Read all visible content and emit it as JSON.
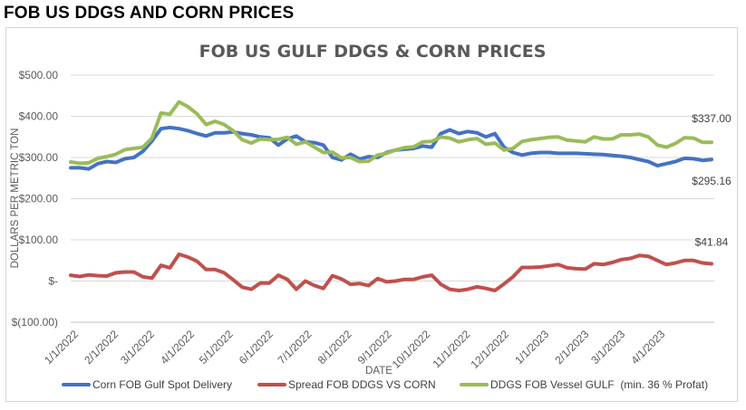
{
  "heading": "FOB US DDGS AND CORN PRICES",
  "chart_data": {
    "type": "line",
    "title": "FOB US GULF DDGS & CORN PRICES",
    "xlabel": "DATE",
    "ylabel": "DOLLARS PER METRIC TON",
    "ylim": [
      -100,
      500
    ],
    "y_ticks": [
      {
        "value": 500,
        "label": "$500.00"
      },
      {
        "value": 400,
        "label": "$400.00"
      },
      {
        "value": 300,
        "label": "$300.00"
      },
      {
        "value": 200,
        "label": "$200.00"
      },
      {
        "value": 100,
        "label": "$100.00"
      },
      {
        "value": 0,
        "label": "$-"
      },
      {
        "value": -100,
        "label": "$(100.00)"
      }
    ],
    "x_tick_labels": [
      "1/1/2022",
      "2/1/2022",
      "3/1/2022",
      "4/1/2022",
      "5/1/2022",
      "6/1/2022",
      "7/1/2022",
      "8/1/2022",
      "9/1/2022",
      "10/1/2022",
      "11/1/2022",
      "12/1/2022",
      "1/1/2023",
      "2/1/2023",
      "3/1/2023",
      "4/1/2023"
    ],
    "x_tick_weeks": [
      0,
      4.43,
      8.43,
      12.86,
      17.14,
      21.57,
      25.86,
      30.29,
      34.71,
      39,
      43.43,
      47.71,
      52.14,
      56.57,
      60.57,
      65
    ],
    "grid": true,
    "legend_position": "bottom",
    "series": [
      {
        "name": "Corn FOB Gulf Spot Delivery",
        "color": "#4472c4",
        "values": [
          275,
          275,
          272,
          285,
          290,
          288,
          297,
          300,
          315,
          340,
          370,
          373,
          370,
          365,
          358,
          352,
          360,
          360,
          362,
          358,
          355,
          350,
          348,
          330,
          345,
          352,
          338,
          336,
          330,
          300,
          294,
          308,
          296,
          302,
          300,
          312,
          318,
          320,
          322,
          328,
          325,
          358,
          367,
          358,
          363,
          360,
          350,
          358,
          325,
          312,
          306,
          310,
          312,
          312,
          310,
          310,
          310,
          309,
          308,
          307,
          305,
          303,
          300,
          295,
          290,
          280,
          285,
          290,
          298,
          297,
          293,
          295.16
        ]
      },
      {
        "name": "Spread FOB DDGS VS CORN",
        "color": "#c0504d",
        "values": [
          14,
          11,
          15,
          13,
          12,
          20,
          22,
          22,
          10,
          7,
          38,
          32,
          65,
          58,
          48,
          28,
          28,
          20,
          3,
          -15,
          -20,
          -5,
          -5,
          14,
          4,
          -20,
          0,
          -11,
          -18,
          13,
          5,
          -8,
          -6,
          -11,
          6,
          -2,
          0,
          4,
          4,
          10,
          14,
          -8,
          -20,
          -23,
          -20,
          -14,
          -18,
          -23,
          -7,
          10,
          33,
          33,
          34,
          37,
          40,
          32,
          30,
          29,
          42,
          40,
          45,
          52,
          55,
          62,
          60,
          50,
          40,
          44,
          50,
          50,
          44,
          41.84
        ]
      },
      {
        "name": "DDGS FOB Vessel GULF  (min. 36 % Profat)",
        "color": "#9bbb59",
        "values": [
          289,
          286,
          287,
          298,
          302,
          308,
          319,
          322,
          325,
          347,
          408,
          405,
          435,
          423,
          406,
          380,
          388,
          380,
          365,
          343,
          335,
          345,
          343,
          344,
          349,
          332,
          338,
          325,
          312,
          313,
          299,
          300,
          290,
          291,
          306,
          310,
          318,
          324,
          326,
          338,
          339,
          350,
          347,
          338,
          343,
          346,
          332,
          335,
          318,
          322,
          339,
          343,
          346,
          349,
          350,
          342,
          340,
          338,
          350,
          345,
          345,
          355,
          355,
          357,
          350,
          330,
          325,
          334,
          348,
          347,
          337,
          337
        ]
      }
    ],
    "data_labels": [
      {
        "text": "$337.00"
      },
      {
        "text": "$295.16"
      },
      {
        "text": "$41.84"
      }
    ]
  }
}
